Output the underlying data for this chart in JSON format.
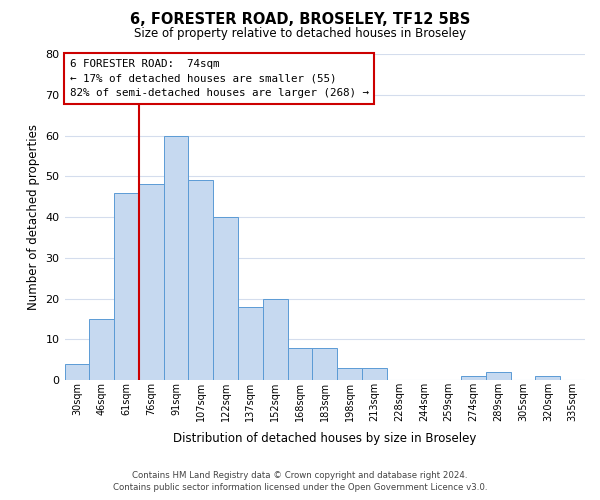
{
  "title": "6, FORESTER ROAD, BROSELEY, TF12 5BS",
  "subtitle": "Size of property relative to detached houses in Broseley",
  "xlabel": "Distribution of detached houses by size in Broseley",
  "ylabel": "Number of detached properties",
  "bar_labels": [
    "30sqm",
    "46sqm",
    "61sqm",
    "76sqm",
    "91sqm",
    "107sqm",
    "122sqm",
    "137sqm",
    "152sqm",
    "168sqm",
    "183sqm",
    "198sqm",
    "213sqm",
    "228sqm",
    "244sqm",
    "259sqm",
    "274sqm",
    "289sqm",
    "305sqm",
    "320sqm",
    "335sqm"
  ],
  "bar_heights": [
    4,
    15,
    46,
    48,
    60,
    49,
    40,
    18,
    20,
    8,
    8,
    3,
    3,
    0,
    0,
    0,
    1,
    2,
    0,
    1,
    0
  ],
  "bar_color": "#c6d9f0",
  "bar_edge_color": "#5b9bd5",
  "vline_color": "#cc0000",
  "ylim": [
    0,
    80
  ],
  "yticks": [
    0,
    10,
    20,
    30,
    40,
    50,
    60,
    70,
    80
  ],
  "annotation_title": "6 FORESTER ROAD:  74sqm",
  "annotation_line1": "← 17% of detached houses are smaller (55)",
  "annotation_line2": "82% of semi-detached houses are larger (268) →",
  "annotation_box_color": "#ffffff",
  "annotation_box_edge": "#cc0000",
  "footer_line1": "Contains HM Land Registry data © Crown copyright and database right 2024.",
  "footer_line2": "Contains public sector information licensed under the Open Government Licence v3.0.",
  "bg_color": "#ffffff",
  "grid_color": "#d4dded"
}
